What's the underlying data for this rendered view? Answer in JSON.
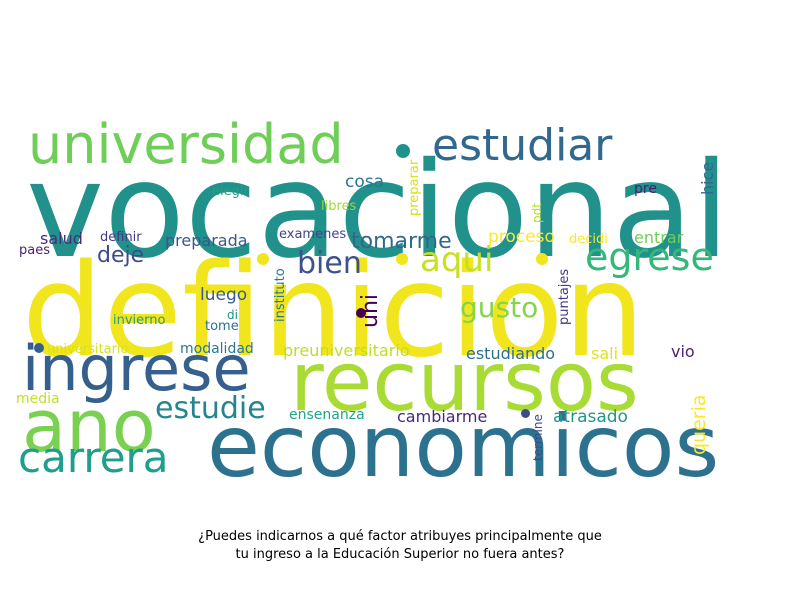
{
  "caption": {
    "line1": "¿Puedes indicarnos a qué factor atribuyes principalmente que",
    "line2": "tu ingreso a la Educación Superior no fuera antes?"
  },
  "words": [
    {
      "text": "vocacional",
      "color": "#21918c"
    },
    {
      "text": "definicion",
      "color": "#f1e51d"
    },
    {
      "text": "recursos",
      "color": "#a8db34"
    },
    {
      "text": "economicos",
      "color": "#2c728e"
    },
    {
      "text": "ingrese",
      "color": "#355f8d"
    },
    {
      "text": "ano",
      "color": "#7ad151"
    },
    {
      "text": "universidad",
      "color": "#6ece58"
    },
    {
      "text": "estudiar",
      "color": "#31688e"
    },
    {
      "text": "carrera",
      "color": "#1f9e89"
    },
    {
      "text": "egrese",
      "color": "#35b779"
    },
    {
      "text": "aqui",
      "color": "#c8e020"
    },
    {
      "text": "bien",
      "color": "#3b528b"
    },
    {
      "text": "estudie",
      "color": "#25858e"
    },
    {
      "text": "gusto",
      "color": "#86d549"
    },
    {
      "text": "tomarme",
      "color": "#31688e"
    },
    {
      "text": "deje",
      "color": "#3e4a89"
    },
    {
      "text": "proceso",
      "color": "#fde725"
    },
    {
      "text": "preparada",
      "color": "#38588c"
    },
    {
      "text": "luego",
      "color": "#365c8d"
    },
    {
      "text": "cosa",
      "color": "#2a788e"
    },
    {
      "text": "uni",
      "color": "#440154"
    },
    {
      "text": "entrar",
      "color": "#6ece58"
    },
    {
      "text": "queria",
      "color": "#fde725"
    },
    {
      "text": "hice",
      "color": "#31688e"
    },
    {
      "text": "preuniversitario",
      "color": "#bddf26"
    },
    {
      "text": "estudiando",
      "color": "#2d708e"
    },
    {
      "text": "sali",
      "color": "#dde318"
    },
    {
      "text": "vio",
      "color": "#482576"
    },
    {
      "text": "modalidad",
      "color": "#2a788e"
    },
    {
      "text": "ensenanza",
      "color": "#20a386"
    },
    {
      "text": "cambiarme",
      "color": "#482878"
    },
    {
      "text": "atrasado",
      "color": "#1f968b"
    },
    {
      "text": "salud",
      "color": "#472d7b"
    },
    {
      "text": "definir",
      "color": "#443983"
    },
    {
      "text": "examenes",
      "color": "#414487"
    },
    {
      "text": "decidi",
      "color": "#fde725"
    },
    {
      "text": "pre",
      "color": "#481f70"
    },
    {
      "text": "elegir",
      "color": "#1fa187"
    },
    {
      "text": "libres",
      "color": "#9bd93c"
    },
    {
      "text": "preparar",
      "color": "#d2e21b"
    },
    {
      "text": "pdt",
      "color": "#b5de2b"
    },
    {
      "text": "paes",
      "color": "#481f70"
    },
    {
      "text": "instituto",
      "color": "#2a788e"
    },
    {
      "text": "puntajes",
      "color": "#443983"
    },
    {
      "text": "invierno",
      "color": "#1f9e89"
    },
    {
      "text": "di",
      "color": "#21918c"
    },
    {
      "text": "tome",
      "color": "#2c728e"
    },
    {
      "text": "universitario",
      "color": "#d8e219"
    },
    {
      "text": "media",
      "color": "#c2df23"
    },
    {
      "text": "termine",
      "color": "#3e4a89"
    }
  ]
}
